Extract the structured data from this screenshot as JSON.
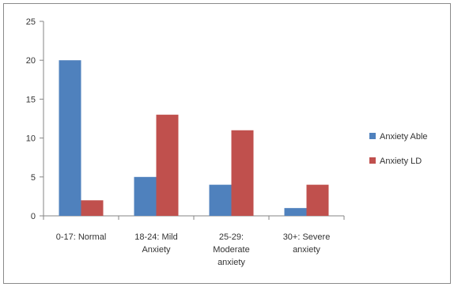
{
  "chart_data": {
    "type": "bar",
    "categories": [
      [
        "0-17:  Normal"
      ],
      [
        "18-24: Mild",
        "Anxiety"
      ],
      [
        "25-29:",
        "Moderate",
        "anxiety"
      ],
      [
        "30+:  Severe",
        "anxiety"
      ]
    ],
    "series": [
      {
        "name": "Anxiety Able",
        "color": "#4f81bd",
        "values": [
          20,
          5,
          4,
          1
        ]
      },
      {
        "name": "Anxiety LD",
        "color": "#c0504d",
        "values": [
          2,
          13,
          11,
          4
        ]
      }
    ],
    "ylim": [
      0,
      25
    ],
    "yticks": [
      0,
      5,
      10,
      15,
      20,
      25
    ],
    "grid": false,
    "legend": "right"
  }
}
